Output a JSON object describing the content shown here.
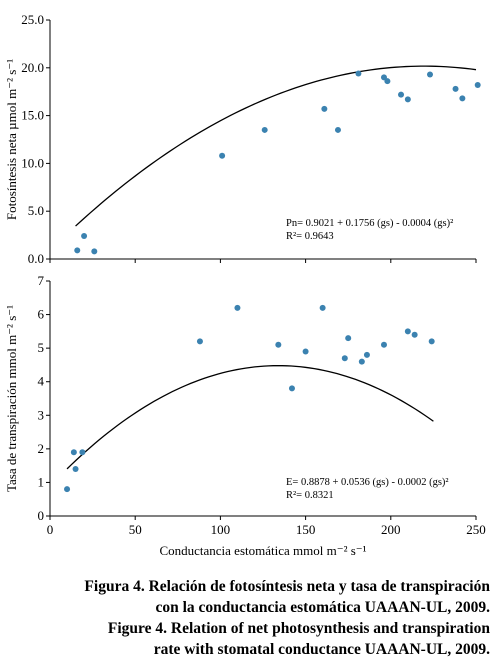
{
  "chart_data": [
    {
      "type": "scatter",
      "ylabel": "Fotosíntesis neta µmol m⁻² s⁻¹",
      "ylim": [
        0,
        25
      ],
      "yticks": [
        "0.0",
        "5.0",
        "10.0",
        "15.0",
        "20.0",
        "25.0"
      ],
      "xlim": [
        0,
        250
      ],
      "x_tick_labels_shown": false,
      "grid": false,
      "equation": "Pn= 0.9021 + 0.1756 (gs) - 0.0004 (gs)²",
      "r2": "R²= 0.9643",
      "fit": {
        "form": "quadratic",
        "c0": 0.9021,
        "c1": 0.1756,
        "c2": -0.0004,
        "x_range": [
          15,
          250
        ]
      },
      "points": [
        {
          "x": 16,
          "y": 0.9
        },
        {
          "x": 20,
          "y": 2.4
        },
        {
          "x": 26,
          "y": 0.8
        },
        {
          "x": 101,
          "y": 10.8
        },
        {
          "x": 126,
          "y": 13.5
        },
        {
          "x": 161,
          "y": 15.7
        },
        {
          "x": 169,
          "y": 13.5
        },
        {
          "x": 181,
          "y": 19.4
        },
        {
          "x": 196,
          "y": 19.0
        },
        {
          "x": 198,
          "y": 18.6
        },
        {
          "x": 206,
          "y": 17.2
        },
        {
          "x": 210,
          "y": 16.7
        },
        {
          "x": 223,
          "y": 19.3
        },
        {
          "x": 238,
          "y": 17.8
        },
        {
          "x": 242,
          "y": 16.8
        },
        {
          "x": 251,
          "y": 18.2
        }
      ]
    },
    {
      "type": "scatter",
      "ylabel": "Tasa de transpiración mmol m⁻² s⁻¹",
      "ylim": [
        0,
        7
      ],
      "yticks": [
        "0",
        "1",
        "2",
        "3",
        "4",
        "5",
        "6",
        "7"
      ],
      "xlabel": "Conductancia estomática mmol m⁻² s⁻¹",
      "xlim": [
        0,
        250
      ],
      "xticks": [
        "0",
        "50",
        "100",
        "150",
        "200",
        "250"
      ],
      "grid": false,
      "equation": "E= 0.8878 + 0.0536 (gs) - 0.0002 (gs)²",
      "r2": "R²= 0.8321",
      "fit": {
        "form": "quadratic",
        "c0": 0.8878,
        "c1": 0.0536,
        "c2": -0.0002,
        "x_range": [
          10,
          225
        ]
      },
      "points": [
        {
          "x": 10,
          "y": 0.8
        },
        {
          "x": 14,
          "y": 1.9
        },
        {
          "x": 15,
          "y": 1.4
        },
        {
          "x": 19,
          "y": 1.9
        },
        {
          "x": 88,
          "y": 5.2
        },
        {
          "x": 110,
          "y": 6.2
        },
        {
          "x": 134,
          "y": 5.1
        },
        {
          "x": 142,
          "y": 3.8
        },
        {
          "x": 150,
          "y": 4.9
        },
        {
          "x": 160,
          "y": 6.2
        },
        {
          "x": 173,
          "y": 4.7
        },
        {
          "x": 175,
          "y": 5.3
        },
        {
          "x": 183,
          "y": 4.6
        },
        {
          "x": 186,
          "y": 4.8
        },
        {
          "x": 196,
          "y": 5.1
        },
        {
          "x": 210,
          "y": 5.5
        },
        {
          "x": 214,
          "y": 5.4
        },
        {
          "x": 224,
          "y": 5.2
        }
      ]
    }
  ],
  "caption": {
    "es_line1": "Figura 4. Relación de fotosíntesis neta y tasa de transpiración",
    "es_line2": "con la conductancia estomática UAAAN-UL, 2009.",
    "en_line1": "Figure 4. Relation of net photosynthesis and transpiration",
    "en_line2": "rate with stomatal conductance UAAAN-UL, 2009."
  }
}
